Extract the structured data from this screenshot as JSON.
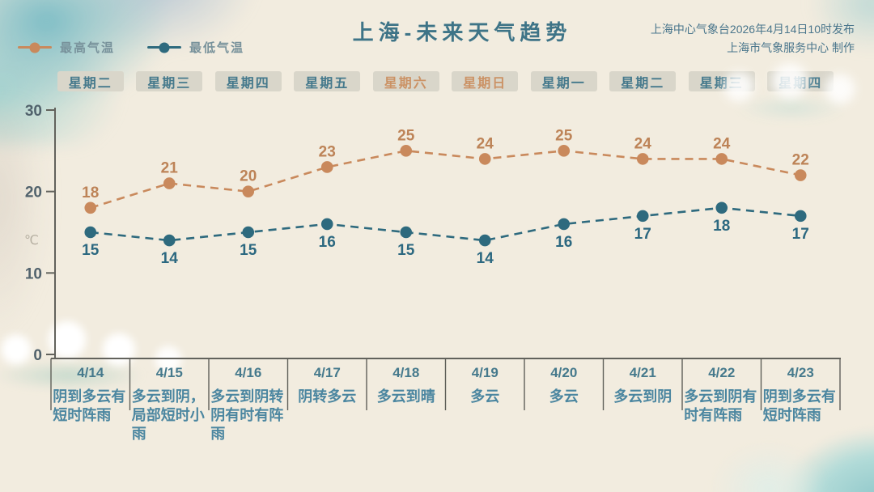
{
  "header": {
    "title": "上海-未来天气趋势",
    "source_line1": "上海中心气象台2026年4月14日10时发布",
    "source_line2": "上海市气象服务中心 制作"
  },
  "legend": [
    {
      "label": "最高气温",
      "color": "#c9895c"
    },
    {
      "label": "最低气温",
      "color": "#2e6a7e"
    }
  ],
  "weekdays": [
    {
      "label": "星期二",
      "weekend": false
    },
    {
      "label": "星期三",
      "weekend": false
    },
    {
      "label": "星期四",
      "weekend": false
    },
    {
      "label": "星期五",
      "weekend": false
    },
    {
      "label": "星期六",
      "weekend": true
    },
    {
      "label": "星期日",
      "weekend": true
    },
    {
      "label": "星期一",
      "weekend": false
    },
    {
      "label": "星期二",
      "weekend": false
    },
    {
      "label": "星期三",
      "weekend": false
    },
    {
      "label": "星期四",
      "weekend": false
    }
  ],
  "chart_data": {
    "type": "line",
    "categories": [
      "4/14",
      "4/15",
      "4/16",
      "4/17",
      "4/18",
      "4/19",
      "4/20",
      "4/21",
      "4/22",
      "4/23"
    ],
    "series": [
      {
        "name": "最高气温",
        "color": "#c9895c",
        "label_color": "#bd8357",
        "values": [
          18,
          21,
          20,
          23,
          25,
          24,
          25,
          24,
          24,
          22
        ]
      },
      {
        "name": "最低气温",
        "color": "#2e6a7e",
        "label_color": "#2c6880",
        "values": [
          15,
          14,
          15,
          16,
          15,
          14,
          16,
          17,
          18,
          17
        ]
      }
    ],
    "xlabel": "",
    "ylabel": "℃",
    "yticks": [
      0,
      10,
      20,
      30
    ],
    "ylim": [
      0,
      30
    ],
    "grid": false,
    "line_style": "dashed",
    "legend_position": "top-left"
  },
  "forecast": [
    {
      "date": "4/14",
      "desc": "阴到多云有短时阵雨"
    },
    {
      "date": "4/15",
      "desc": "多云到阴，局部短时小雨"
    },
    {
      "date": "4/16",
      "desc": "多云到阴转阴有时有阵雨"
    },
    {
      "date": "4/17",
      "desc": "阴转多云"
    },
    {
      "date": "4/18",
      "desc": "多云到晴"
    },
    {
      "date": "4/19",
      "desc": "多云"
    },
    {
      "date": "4/20",
      "desc": "多云"
    },
    {
      "date": "4/21",
      "desc": "多云到阴"
    },
    {
      "date": "4/22",
      "desc": "多云到阴有时有阵雨"
    },
    {
      "date": "4/23",
      "desc": "阴到多云有短时阵雨"
    }
  ],
  "colors": {
    "background": "#f2ecdf",
    "title": "#3e7487",
    "axis": "#62625c",
    "tick_label": "#51626c",
    "celsius_label": "#b6b0a2",
    "chip_bg": "#d9d6ca",
    "weekday_text": "#45798c",
    "weekend_text": "#cb9265",
    "date_text": "#45798c",
    "desc_text": "#4b86a0",
    "high": "#c9895c",
    "low": "#2e6a7e"
  }
}
